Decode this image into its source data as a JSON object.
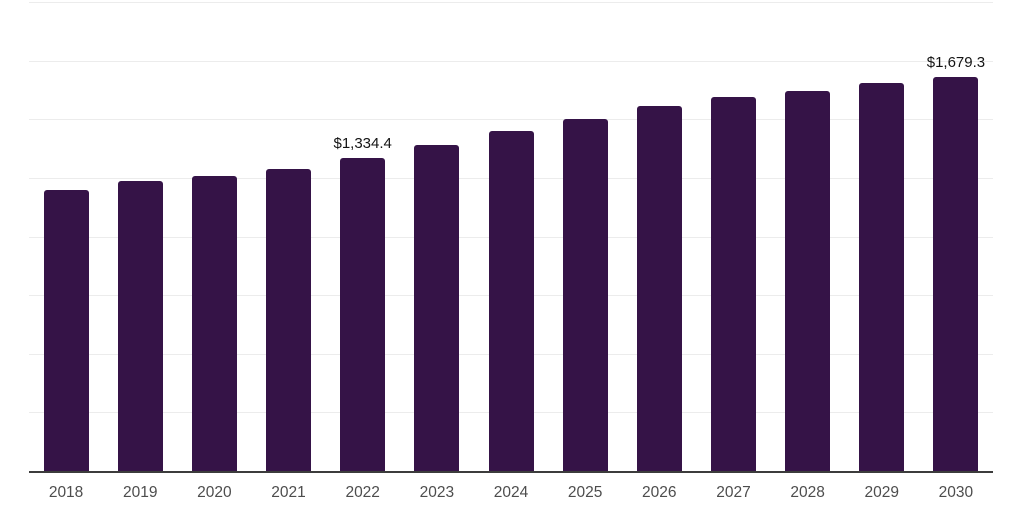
{
  "chart_data": {
    "type": "bar",
    "title": "",
    "xlabel": "",
    "ylabel": "",
    "categories": [
      "2018",
      "2019",
      "2020",
      "2021",
      "2022",
      "2023",
      "2024",
      "2025",
      "2026",
      "2027",
      "2028",
      "2029",
      "2030"
    ],
    "values": [
      1197,
      1238,
      1257,
      1290,
      1334.4,
      1389,
      1450,
      1503,
      1555,
      1594,
      1622,
      1655,
      1679.3
    ],
    "annotations": [
      {
        "index": 4,
        "text": "$1,334.4"
      },
      {
        "index": 12,
        "text": "$1,679.3"
      }
    ],
    "ylim": [
      0,
      2000
    ],
    "gridline_step": 250,
    "grid": true,
    "legend": "none",
    "colors": {
      "bar": "#351347",
      "gridline": "#ececec",
      "axis_line": "#3c3c3c",
      "value_label": "#141414",
      "tick_label": "#4d4d4d",
      "background": "#ffffff"
    }
  }
}
